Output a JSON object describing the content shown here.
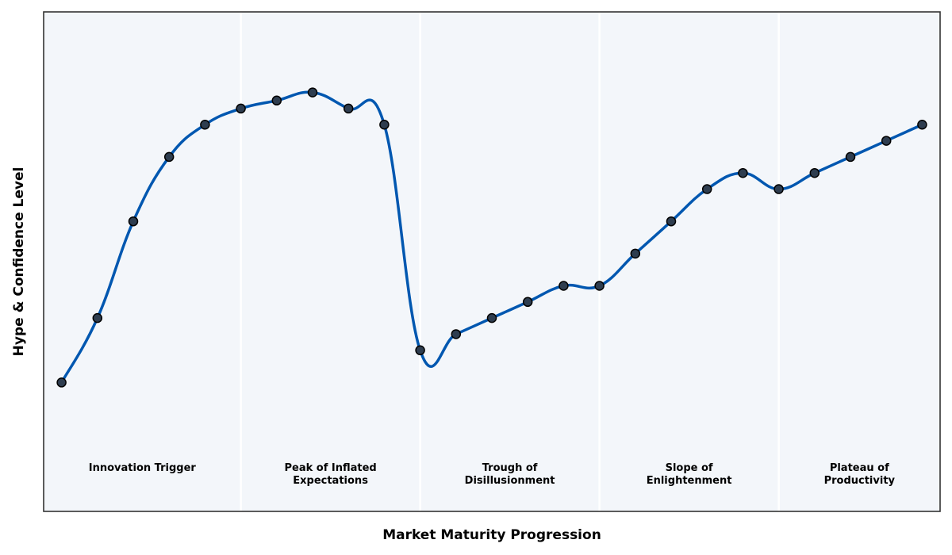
{
  "chart_data": {
    "type": "line",
    "xlabel": "Market Maturity Progression",
    "ylabel": "Hype & Confidence Level",
    "x": [
      0,
      1,
      2,
      3,
      4,
      5,
      6,
      7,
      8,
      9,
      10,
      11,
      12,
      13,
      14,
      15,
      16,
      17,
      18,
      19,
      20,
      21,
      22,
      23,
      24
    ],
    "series": [
      {
        "color": "#0057b0",
        "marker_color": "#2e3d4f",
        "values": [
          8,
          12,
          18,
          22,
          24,
          25,
          25.5,
          26,
          25,
          24,
          10,
          11,
          12,
          13,
          14,
          14,
          16,
          18,
          20,
          21,
          20,
          21,
          22,
          23,
          24
        ]
      }
    ],
    "xlim": [
      -0.5,
      24.5
    ],
    "ylim": [
      0,
      31
    ],
    "phase_boundaries": [
      5,
      10,
      15,
      20
    ],
    "phases": [
      "Innovation Trigger",
      "Peak of Inflated\nExpectations",
      "Trough of\nDisillusionment",
      "Slope of\nEnlightenment",
      "Plateau of\nProductivity"
    ]
  }
}
